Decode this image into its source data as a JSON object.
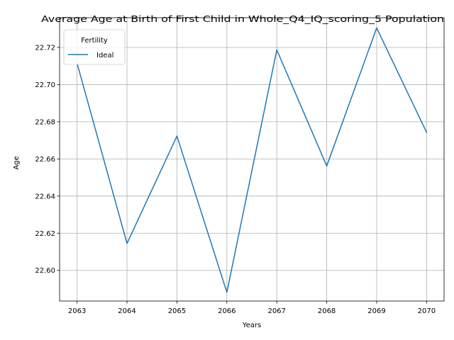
{
  "chart_data": {
    "type": "line",
    "title": "Average Age at Birth of First Child in Whole_Q4_IQ_scoring_5 Population",
    "xlabel": "Years",
    "ylabel": "Age",
    "x": [
      2063,
      2064,
      2065,
      2066,
      2067,
      2068,
      2069,
      2070
    ],
    "x_tick_labels": [
      "2063",
      "2064",
      "2065",
      "2066",
      "2067",
      "2068",
      "2069",
      "2070"
    ],
    "xlim": [
      2062.65,
      2070.35
    ],
    "ylim": [
      22.5835,
      22.736
    ],
    "y_ticks": [
      22.6,
      22.62,
      22.64,
      22.66,
      22.68,
      22.7,
      22.72
    ],
    "y_tick_labels": [
      "22.60",
      "22.62",
      "22.64",
      "22.66",
      "22.68",
      "22.70",
      "22.72"
    ],
    "grid": true,
    "legend": {
      "title": "Fertility",
      "position": "top-left"
    },
    "series": [
      {
        "name": "Ideal",
        "color": "#1f77b4",
        "values": [
          22.7115,
          22.6145,
          22.6723,
          22.5882,
          22.7187,
          22.6562,
          22.7305,
          22.6743
        ]
      }
    ]
  }
}
